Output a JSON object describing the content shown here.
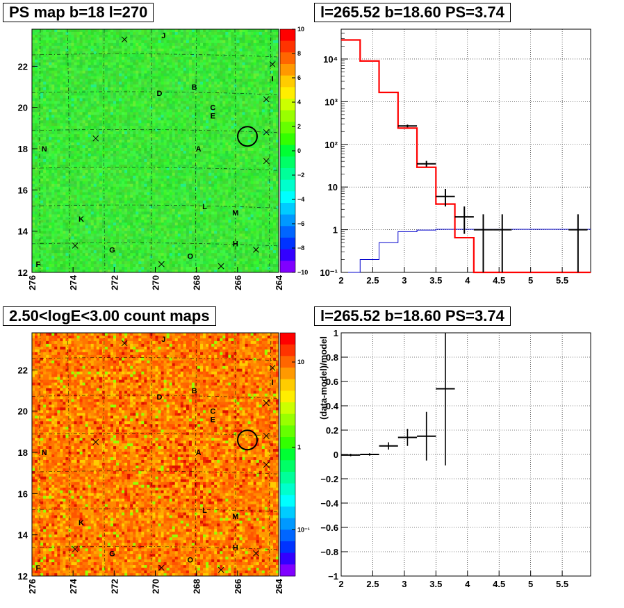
{
  "panels": {
    "tl": {
      "title": "PS map b=18 l=270",
      "xticks": [
        "276",
        "274",
        "272",
        "270",
        "268",
        "266",
        "264"
      ],
      "yticks": [
        "12",
        "14",
        "16",
        "18",
        "20",
        "22"
      ],
      "colorbar_ticks": [
        "10",
        "8",
        "6",
        "4",
        "2",
        "0",
        "−2",
        "−4",
        "−6",
        "−8",
        "−10"
      ],
      "source_labels": [
        "J",
        "B",
        "D",
        "C",
        "E",
        "I",
        "N",
        "A",
        "L",
        "M",
        "K",
        "H",
        "G",
        "O",
        "F"
      ]
    },
    "tr": {
      "title": "l=265.52 b=18.60 PS=3.74",
      "xticks": [
        "2",
        "2.5",
        "3",
        "3.5",
        "4",
        "4.5",
        "5",
        "5.5"
      ],
      "yticks": [
        "10⁻¹",
        "1",
        "10",
        "10²",
        "10³",
        "10⁴"
      ]
    },
    "bl": {
      "title": "2.50<logE<3.00 count maps",
      "xticks": [
        "276",
        "274",
        "272",
        "270",
        "268",
        "266",
        "264"
      ],
      "yticks": [
        "12",
        "14",
        "16",
        "18",
        "20",
        "22"
      ],
      "colorbar_ticks": [
        "10",
        "1",
        "10⁻¹"
      ],
      "source_labels": [
        "J",
        "B",
        "D",
        "C",
        "E",
        "I",
        "N",
        "A",
        "L",
        "M",
        "K",
        "H",
        "G",
        "O",
        "F"
      ]
    },
    "br": {
      "title": "l=265.52 b=18.60 PS=3.74",
      "ylabel": "(data-model)/model",
      "xticks": [
        "2",
        "2.5",
        "3",
        "3.5",
        "4",
        "4.5",
        "5",
        "5.5"
      ],
      "yticks": [
        "−1",
        "−0.8",
        "−0.6",
        "−0.4",
        "−0.2",
        "0",
        "0.2",
        "0.4",
        "0.6",
        "0.8",
        "1"
      ]
    }
  },
  "chart_data": [
    {
      "type": "heatmap",
      "title": "PS map b=18 l=270",
      "xlim": [
        276,
        264
      ],
      "ylim": [
        12,
        23.8
      ],
      "z_range": [
        -10,
        10
      ],
      "sources": [
        {
          "name": "J",
          "l": 269.6,
          "b": 23.5
        },
        {
          "name": "B",
          "l": 268.1,
          "b": 21.0
        },
        {
          "name": "D",
          "l": 269.8,
          "b": 20.7
        },
        {
          "name": "C",
          "l": 267.2,
          "b": 20.0
        },
        {
          "name": "E",
          "l": 267.2,
          "b": 19.6
        },
        {
          "name": "I",
          "l": 264.3,
          "b": 21.4
        },
        {
          "name": "N",
          "l": 275.4,
          "b": 18.0
        },
        {
          "name": "A",
          "l": 267.9,
          "b": 18.0
        },
        {
          "name": "L",
          "l": 267.6,
          "b": 15.2
        },
        {
          "name": "M",
          "l": 266.1,
          "b": 14.9
        },
        {
          "name": "K",
          "l": 273.6,
          "b": 14.6
        },
        {
          "name": "H",
          "l": 266.1,
          "b": 13.4
        },
        {
          "name": "G",
          "l": 272.1,
          "b": 13.1
        },
        {
          "name": "O",
          "l": 268.3,
          "b": 12.8
        },
        {
          "name": "F",
          "l": 275.7,
          "b": 12.4
        }
      ],
      "crosses": [
        [
          271.5,
          23.3
        ],
        [
          264.3,
          22.1
        ],
        [
          264.6,
          20.4
        ],
        [
          264.6,
          18.8
        ],
        [
          272.9,
          18.5
        ],
        [
          264.6,
          17.4
        ],
        [
          273.9,
          13.3
        ],
        [
          265.1,
          13.1
        ],
        [
          269.7,
          12.4
        ],
        [
          266.8,
          12.3
        ]
      ],
      "circle": {
        "l": 265.52,
        "b": 18.6
      }
    },
    {
      "type": "line",
      "title": "l=265.52 b=18.60 PS=3.74",
      "log_y": true,
      "xlim": [
        2,
        5.95
      ],
      "ylim": [
        0.1,
        50000
      ],
      "series": [
        {
          "x_edges": [
            2.0,
            2.3,
            2.6,
            2.9,
            3.2,
            3.5,
            3.8,
            4.1,
            4.4,
            4.7,
            5.0,
            5.3,
            5.95
          ],
          "values": [
            28000,
            9000,
            1650,
            240,
            29,
            4,
            0.65,
            0.09,
            0.09,
            0.09,
            0.09,
            0.09,
            0.09
          ]
        },
        {
          "x_edges": [
            2.0,
            2.3,
            2.6,
            2.9,
            3.2,
            3.5,
            3.8,
            4.1,
            4.4,
            4.7,
            5.0,
            5.3,
            5.95
          ],
          "values": [
            0.08,
            0.2,
            0.5,
            0.9,
            0.98,
            1.02,
            1.02,
            1.02,
            1.02,
            1.02,
            1.02,
            1.02,
            1.02
          ]
        },
        {
          "points": [
            {
              "x": 3.05,
              "xerr": 0.15,
              "y": 270,
              "ylo": 250,
              "yhi": 290
            },
            {
              "x": 3.35,
              "xerr": 0.15,
              "y": 35,
              "ylo": 30,
              "yhi": 41
            },
            {
              "x": 3.65,
              "xerr": 0.15,
              "y": 6,
              "ylo": 3.5,
              "yhi": 9
            },
            {
              "x": 3.95,
              "xerr": 0.15,
              "y": 2,
              "ylo": 0.8,
              "yhi": 3.5
            },
            {
              "x": 4.25,
              "xerr": 0.15,
              "y": 1,
              "ylo": 0.1,
              "yhi": 2.3
            },
            {
              "x": 4.55,
              "xerr": 0.15,
              "y": 1,
              "ylo": 0.1,
              "yhi": 2.3
            },
            {
              "x": 5.75,
              "xerr": 0.15,
              "y": 1,
              "ylo": 0.1,
              "yhi": 2.3
            }
          ]
        }
      ]
    },
    {
      "type": "heatmap",
      "title": "2.50<logE<3.00 count maps",
      "xlim": [
        276,
        264
      ],
      "ylim": [
        12,
        23.8
      ],
      "z_log": true,
      "z_range": [
        0.03,
        30
      ]
    },
    {
      "type": "scatter",
      "title": "l=265.52 b=18.60 PS=3.74",
      "ylabel": "(data-model)/model",
      "xlim": [
        2,
        5.95
      ],
      "ylim": [
        -1,
        1
      ],
      "points": [
        {
          "x": 2.15,
          "xerr": 0.15,
          "y": -0.005,
          "yerr": 0.01
        },
        {
          "x": 2.45,
          "xerr": 0.15,
          "y": 0.0,
          "yerr": 0.01
        },
        {
          "x": 2.75,
          "xerr": 0.15,
          "y": 0.07,
          "yerr": 0.03
        },
        {
          "x": 3.05,
          "xerr": 0.15,
          "y": 0.14,
          "yerr": 0.07
        },
        {
          "x": 3.35,
          "xerr": 0.15,
          "y": 0.15,
          "yerr": 0.2
        },
        {
          "x": 3.65,
          "xerr": 0.15,
          "y": 0.54,
          "yerr": 0.63
        }
      ]
    }
  ]
}
